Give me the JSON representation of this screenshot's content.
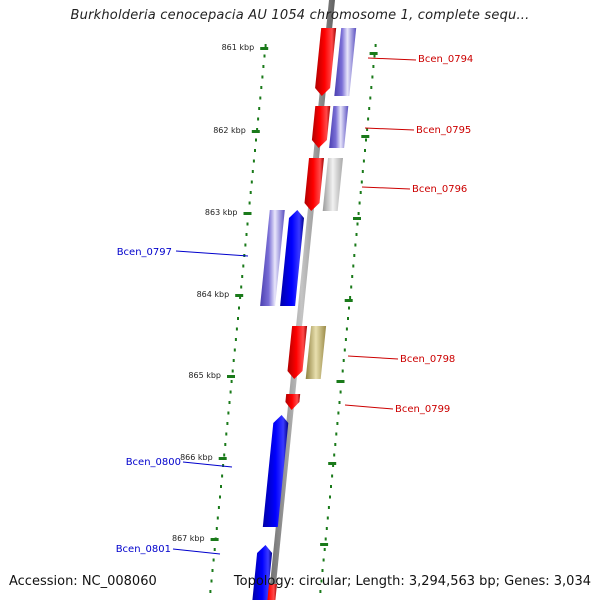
{
  "title": "Burkholderia cenocepacia AU 1054 chromosome 1, complete sequ...",
  "footer": {
    "accession": "Accession: NC_008060",
    "info": "Topology: circular; Length: 3,294,563 bp; Genes: 3,034"
  },
  "colors": {
    "forward_gene": "#ff0000",
    "reverse_gene": "#0000ff",
    "reverse_cds_light": "#7a6fd6",
    "gray_feature": "#c8c8c8",
    "olive_feature": "#c9bb78",
    "ruler_green": "#1a7a1a",
    "backbone": "#8c8c8c",
    "forward_label": "#cc0000",
    "reverse_label": "#0000cc"
  },
  "ruler_ticks": [
    "861 kbp",
    "862 kbp",
    "863 kbp",
    "864 kbp",
    "865 kbp",
    "866 kbp",
    "867 kbp"
  ],
  "genes": [
    {
      "label": "Bcen_0794",
      "strand": "forward"
    },
    {
      "label": "Bcen_0795",
      "strand": "forward"
    },
    {
      "label": "Bcen_0796",
      "strand": "forward"
    },
    {
      "label": "Bcen_0797",
      "strand": "reverse"
    },
    {
      "label": "Bcen_0798",
      "strand": "forward"
    },
    {
      "label": "Bcen_0799",
      "strand": "forward"
    },
    {
      "label": "Bcen_0800",
      "strand": "reverse"
    },
    {
      "label": "Bcen_0801",
      "strand": "reverse"
    }
  ]
}
